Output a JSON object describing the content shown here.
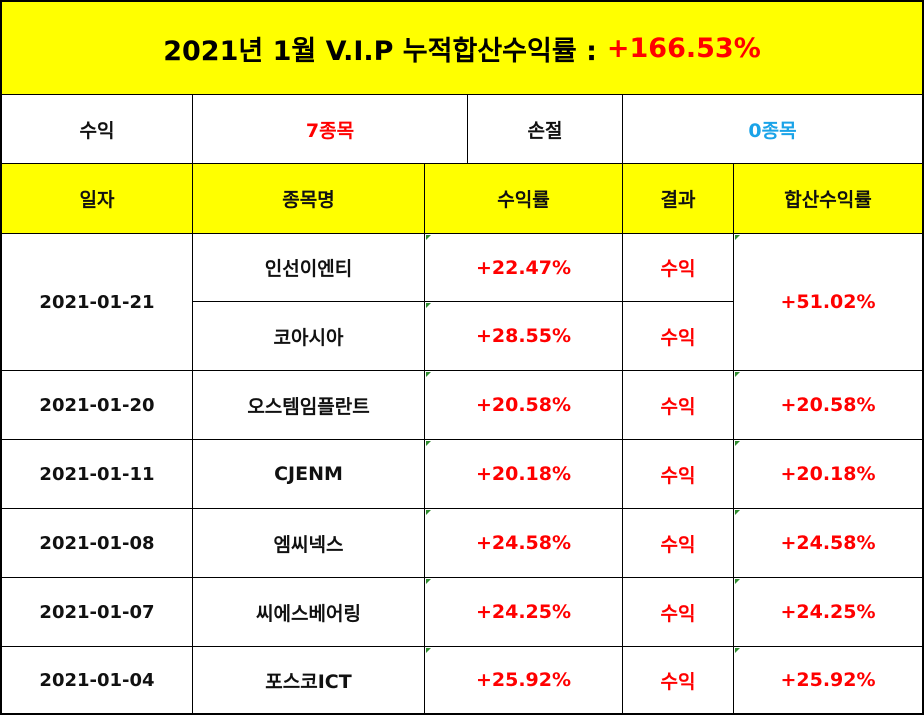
{
  "title": {
    "text": "2021년 1월 V.I.P 누적합산수익률 :",
    "total": "+166.53%"
  },
  "summary": {
    "profit_label": "수익",
    "profit_count": "7종목",
    "loss_label": "손절",
    "loss_count": "0종목"
  },
  "headers": {
    "date": "일자",
    "name": "종목명",
    "rate": "수익률",
    "result": "결과",
    "sum": "합산수익률"
  },
  "rows": [
    {
      "date": "2021-01-21",
      "name": "인선이엔티",
      "rate": "+22.47%",
      "result": "수익",
      "sum": "+51.02%"
    },
    {
      "date": "2021-01-21",
      "name": "코아시아",
      "rate": "+28.55%",
      "result": "수익",
      "sum": "+51.02%"
    },
    {
      "date": "2021-01-20",
      "name": "오스템임플란트",
      "rate": "+20.58%",
      "result": "수익",
      "sum": "+20.58%"
    },
    {
      "date": "2021-01-11",
      "name": "CJENM",
      "rate": "+20.18%",
      "result": "수익",
      "sum": "+20.18%"
    },
    {
      "date": "2021-01-08",
      "name": "엠씨넥스",
      "rate": "+24.58%",
      "result": "수익",
      "sum": "+24.58%"
    },
    {
      "date": "2021-01-07",
      "name": "씨에스베어링",
      "rate": "+24.25%",
      "result": "수익",
      "sum": "+24.25%"
    },
    {
      "date": "2021-01-04",
      "name": "포스코ICT",
      "rate": "+25.92%",
      "result": "수익",
      "sum": "+25.92%"
    }
  ],
  "colors": {
    "header_bg": "#ffff00",
    "profit_text": "#ff0000",
    "loss_text": "#1aa3e8",
    "border": "#000000"
  }
}
